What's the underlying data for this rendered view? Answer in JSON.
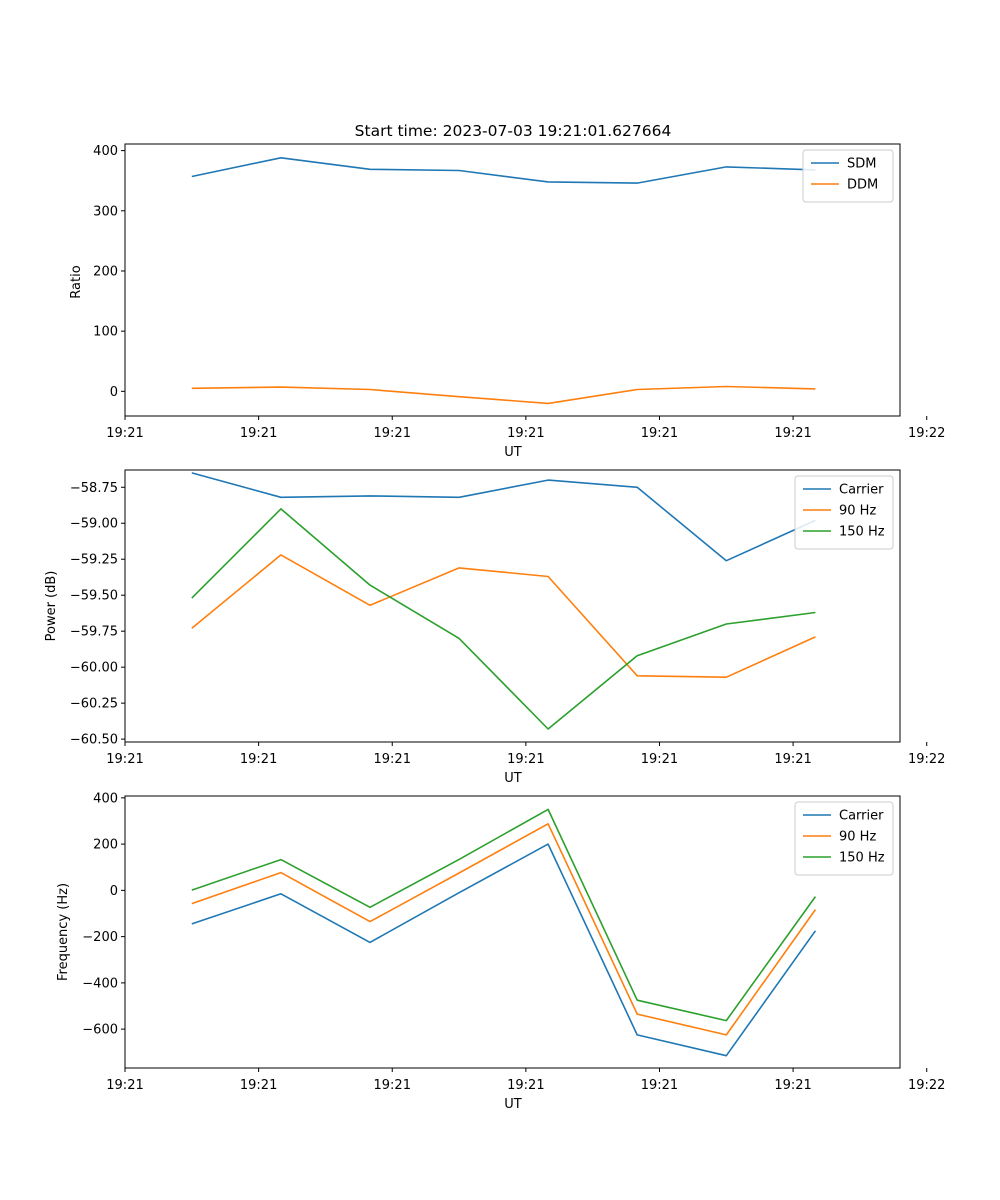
{
  "figure_title": "Start time: 2023-07-03 19:21:01.627664",
  "x_tick_labels": [
    "19:21",
    "19:21",
    "19:21",
    "19:21",
    "19:21",
    "19:21",
    "19:22"
  ],
  "chart_data": [
    {
      "type": "line",
      "title": "Start time: 2023-07-03 19:21:01.627664",
      "xlabel": "UT",
      "ylabel": "Ratio",
      "x": [
        1,
        2,
        3,
        4,
        5,
        6,
        7,
        8
      ],
      "xlim": [
        0.25,
        8.95
      ],
      "ylim": [
        -41,
        411
      ],
      "yticks": [
        0,
        100,
        200,
        300,
        400
      ],
      "ytick_labels": [
        "0",
        "100",
        "200",
        "300",
        "400"
      ],
      "x_tick_positions": [
        0.25,
        1.75,
        3.25,
        4.75,
        6.25,
        7.75,
        9.25
      ],
      "x_tick_labels": [
        "19:21",
        "19:21",
        "19:21",
        "19:21",
        "19:21",
        "19:21",
        "19:22"
      ],
      "legend_position": "upper right",
      "series": [
        {
          "name": "SDM",
          "color": "#1f77b4",
          "values": [
            357,
            388,
            369,
            367,
            348,
            346,
            373,
            368
          ]
        },
        {
          "name": "DDM",
          "color": "#ff7f0e",
          "values": [
            5,
            7,
            3,
            -9,
            -20,
            3,
            8,
            4
          ]
        }
      ]
    },
    {
      "type": "line",
      "title": "",
      "xlabel": "UT",
      "ylabel": "Power (dB)",
      "x": [
        1,
        2,
        3,
        4,
        5,
        6,
        7,
        8
      ],
      "xlim": [
        0.25,
        8.95
      ],
      "ylim": [
        -60.52,
        -58.63
      ],
      "yticks": [
        -60.5,
        -60.25,
        -60.0,
        -59.75,
        -59.5,
        -59.25,
        -59.0,
        -58.75
      ],
      "ytick_labels": [
        "−60.50",
        "−60.25",
        "−60.00",
        "−59.75",
        "−59.50",
        "−59.25",
        "−59.00",
        "−58.75"
      ],
      "x_tick_positions": [
        0.25,
        1.75,
        3.25,
        4.75,
        6.25,
        7.75,
        9.25
      ],
      "x_tick_labels": [
        "19:21",
        "19:21",
        "19:21",
        "19:21",
        "19:21",
        "19:21",
        "19:22"
      ],
      "legend_position": "upper right",
      "series": [
        {
          "name": "Carrier",
          "color": "#1f77b4",
          "values": [
            -58.65,
            -58.82,
            -58.81,
            -58.82,
            -58.7,
            -58.75,
            -59.26,
            -58.98
          ]
        },
        {
          "name": "90 Hz",
          "color": "#ff7f0e",
          "values": [
            -59.73,
            -59.22,
            -59.57,
            -59.31,
            -59.37,
            -60.06,
            -60.07,
            -59.79
          ]
        },
        {
          "name": "150 Hz",
          "color": "#2ca02c",
          "values": [
            -59.52,
            -58.9,
            -59.43,
            -59.8,
            -60.43,
            -59.92,
            -59.7,
            -59.62
          ]
        }
      ]
    },
    {
      "type": "line",
      "title": "",
      "xlabel": "UT",
      "ylabel": "Frequency (Hz)",
      "x": [
        1,
        2,
        3,
        4,
        5,
        6,
        7,
        8
      ],
      "xlim": [
        0.25,
        8.95
      ],
      "ylim": [
        -768,
        408
      ],
      "yticks": [
        -600,
        -400,
        -200,
        0,
        200,
        400
      ],
      "ytick_labels": [
        "−600",
        "−400",
        "−200",
        "0",
        "200",
        "400"
      ],
      "x_tick_positions": [
        0.25,
        1.75,
        3.25,
        4.75,
        6.25,
        7.75,
        9.25
      ],
      "x_tick_labels": [
        "19:21",
        "19:21",
        "19:21",
        "19:21",
        "19:21",
        "19:21",
        "19:22"
      ],
      "legend_position": "upper right",
      "series": [
        {
          "name": "Carrier",
          "color": "#1f77b4",
          "values": [
            -145,
            -15,
            -225,
            -10,
            200,
            -625,
            -715,
            -175
          ]
        },
        {
          "name": "90 Hz",
          "color": "#ff7f0e",
          "values": [
            -57,
            77,
            -135,
            75,
            288,
            -535,
            -625,
            -83
          ]
        },
        {
          "name": "150 Hz",
          "color": "#2ca02c",
          "values": [
            1,
            133,
            -73,
            134,
            350,
            -475,
            -563,
            -27
          ]
        }
      ]
    }
  ]
}
